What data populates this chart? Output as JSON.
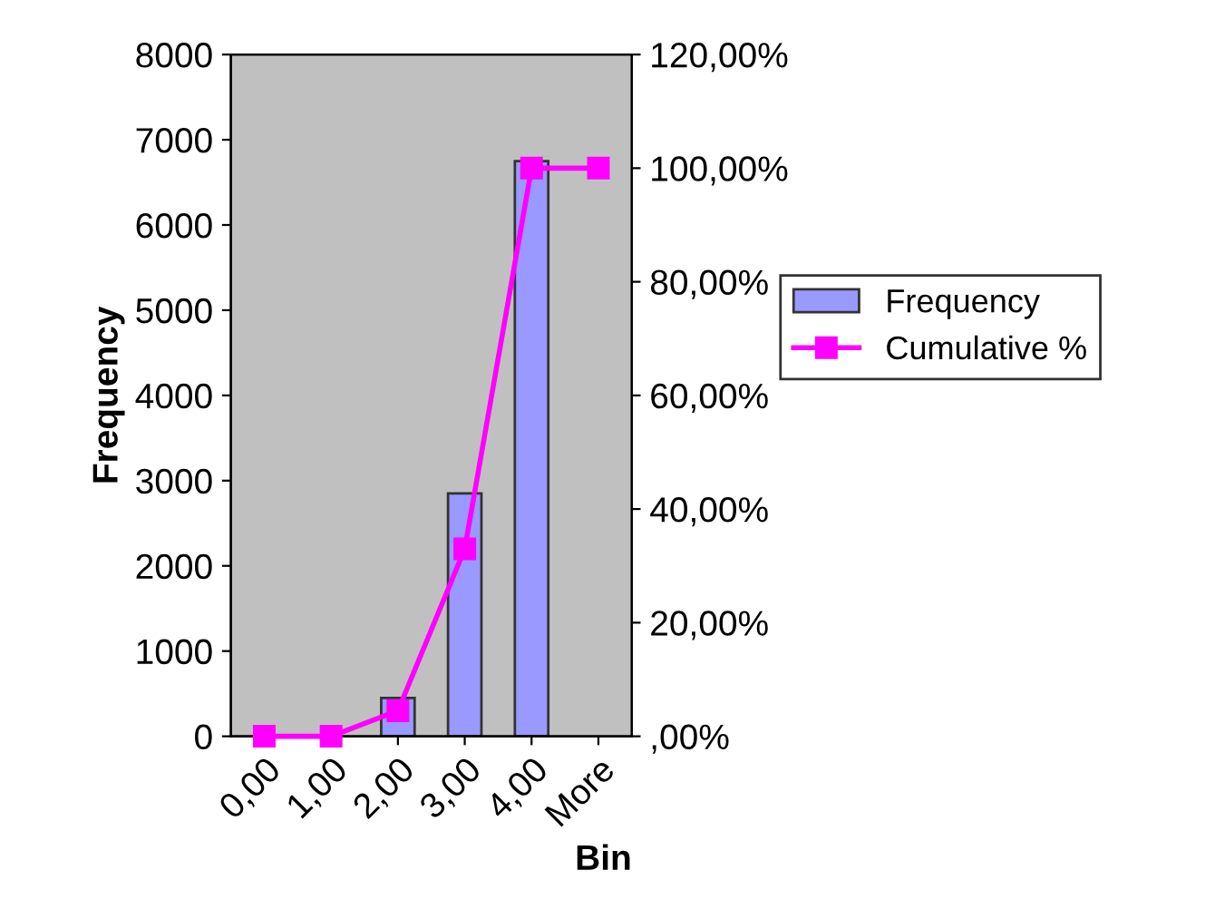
{
  "chart_data": {
    "type": "bar",
    "xlabel": "Bin",
    "ylabel": "Frequency",
    "categories": [
      "0,00",
      "1,00",
      "2,00",
      "3,00",
      "4,00",
      "More"
    ],
    "series": [
      {
        "name": "Frequency",
        "color": "#9999ff",
        "values": [
          0,
          0,
          450,
          2850,
          6750,
          0
        ]
      },
      {
        "name": "Cumulative %",
        "type": "line",
        "axis": "y2",
        "color": "#ff00ff",
        "marker": "square",
        "values": [
          0,
          0,
          4.5,
          33,
          100,
          100
        ]
      }
    ],
    "ylim": [
      0,
      8000
    ],
    "yticks": [
      0,
      1000,
      2000,
      3000,
      4000,
      5000,
      6000,
      7000,
      8000
    ],
    "y2lim": [
      0,
      120
    ],
    "y2ticks": [
      {
        "value": 0,
        "label": ",00%"
      },
      {
        "value": 20,
        "label": "20,00%"
      },
      {
        "value": 40,
        "label": "40,00%"
      },
      {
        "value": 60,
        "label": "60,00%"
      },
      {
        "value": 80,
        "label": "80,00%"
      },
      {
        "value": 100,
        "label": "100,00%"
      },
      {
        "value": 120,
        "label": "120,00%"
      }
    ],
    "grid": false,
    "legend": "right"
  }
}
